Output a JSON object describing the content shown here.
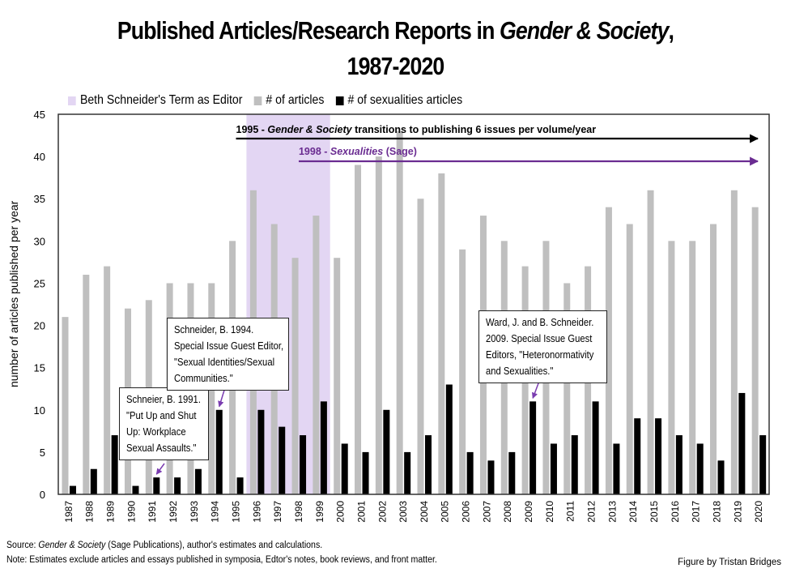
{
  "title": {
    "line1_prefix": "Published Articles/Research Reports in ",
    "line1_italic": "Gender & Society",
    "line1_suffix": ",",
    "line2": "1987-2020"
  },
  "legend": [
    {
      "label": "Beth Schneider's Term as Editor",
      "color": "#e3d6f3"
    },
    {
      "label": "# of articles",
      "color": "#bfbfbf"
    },
    {
      "label": "# of sexualities articles",
      "color": "#000000"
    }
  ],
  "chart_data": {
    "type": "bar",
    "title": "Published Articles/Research Reports in Gender & Society, 1987-2020",
    "xlabel": "",
    "ylabel": "number of articles published per year",
    "ylim": [
      0,
      45
    ],
    "yticks": [
      0,
      5,
      10,
      15,
      20,
      25,
      30,
      35,
      40,
      45
    ],
    "grid": false,
    "legend_position": "top",
    "categories": [
      "1987",
      "1988",
      "1989",
      "1990",
      "1991",
      "1992",
      "1993",
      "1994",
      "1995",
      "1996",
      "1997",
      "1998",
      "1999",
      "2000",
      "2001",
      "2002",
      "2003",
      "2004",
      "2005",
      "2006",
      "2007",
      "2008",
      "2009",
      "2010",
      "2011",
      "2012",
      "2013",
      "2014",
      "2015",
      "2016",
      "2017",
      "2018",
      "2019",
      "2020"
    ],
    "series": [
      {
        "name": "# of articles",
        "color": "#bfbfbf",
        "values": [
          21,
          26,
          27,
          22,
          23,
          25,
          25,
          25,
          30,
          36,
          32,
          28,
          33,
          28,
          39,
          40,
          43,
          35,
          38,
          29,
          33,
          30,
          27,
          30,
          25,
          27,
          34,
          32,
          36,
          30,
          30,
          32,
          36,
          34
        ]
      },
      {
        "name": "# of sexualities articles",
        "color": "#000000",
        "values": [
          1,
          3,
          7,
          1,
          2,
          2,
          3,
          10,
          2,
          10,
          8,
          7,
          11,
          6,
          5,
          10,
          5,
          7,
          13,
          5,
          4,
          5,
          11,
          6,
          7,
          11,
          6,
          9,
          9,
          7,
          6,
          4,
          12,
          7
        ]
      }
    ],
    "shaded_region": {
      "label": "Beth Schneider's Term as Editor",
      "from": "1996",
      "to": "1999",
      "color": "#e3d6f3"
    },
    "annotations": [
      {
        "id": "gs-transition",
        "from": "1995",
        "to": "2020",
        "year_prefix": "1995 - ",
        "italic": "Gender & Society",
        "text": " transitions to publishing 6 issues per volume/year",
        "color": "#000000"
      },
      {
        "id": "sexualities-journal",
        "from": "1998",
        "to": "2020",
        "year_prefix": "1998 - ",
        "italic": "Sexualities",
        "text": " (Sage)",
        "color": "#6a2c91"
      }
    ],
    "callouts": [
      {
        "target_year": "1991",
        "target_value": 2,
        "lines": [
          "Schneier, B. 1991.",
          "\"Put Up and Shut",
          "Up: Workplace",
          "Sexual Assaults.\""
        ]
      },
      {
        "target_year": "1994",
        "target_value": 10,
        "lines": [
          "Schneider, B. 1994.",
          "Special Issue Guest Editor,",
          "\"Sexual Identities/Sexual",
          "Communities.\""
        ]
      },
      {
        "target_year": "2009",
        "target_value": 11,
        "lines": [
          "Ward, J. and B. Schneider.",
          "2009. Special Issue Guest",
          "Editors, \"Heteronormativity",
          "and Sexualities.\""
        ]
      }
    ]
  },
  "footer": {
    "source_prefix": "Source: ",
    "source_italic": "Gender & Society",
    "source_suffix": " (Sage Publications), author's estimates and calculations.",
    "note": "Note: Estimates exclude articles and essays published in symposia, Edtor's notes, book reviews, and front matter.",
    "credit": "Figure by Tristan Bridges"
  },
  "colors": {
    "arrow_purple": "#6a2c91",
    "callout_arrow": "#7a3cb0",
    "axis": "#333333"
  }
}
